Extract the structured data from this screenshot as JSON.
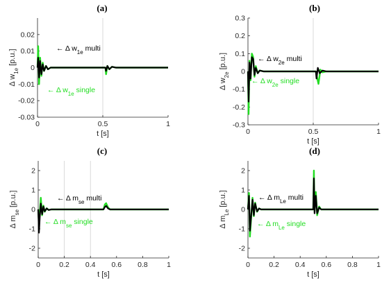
{
  "chart_data": [
    {
      "type": "line",
      "panel_label": "(a)",
      "xlabel": "t [s]",
      "ylabel": "Δ w",
      "ylabel_sub": "1e",
      "ylabel_unit": " [p.u.]",
      "xlim": [
        0,
        1
      ],
      "ylim": [
        -0.03,
        0.03
      ],
      "xticks": [
        0,
        0.5,
        1
      ],
      "yticks": [
        -0.03,
        -0.02,
        -0.01,
        0,
        0.01,
        0.02
      ],
      "xtick_labels": [
        "0",
        "0.5",
        "1"
      ],
      "ytick_labels": [
        "-0.03",
        "-0.02",
        "-0.01",
        "0",
        "0.01",
        "0.02"
      ],
      "grid": [
        0.5
      ],
      "series": [
        {
          "name": "Δ w1e multi",
          "color": "#000000",
          "x": [
            0,
            0.005,
            0.012,
            0.02,
            0.03,
            0.04,
            0.05,
            0.065,
            0.08,
            0.1,
            0.52,
            0.525,
            0.535,
            0.55,
            0.57,
            0.6,
            1
          ],
          "y": [
            0,
            0.006,
            -0.006,
            0.004,
            -0.004,
            0.002,
            -0.002,
            0.001,
            -0.001,
            0,
            0,
            -0.002,
            0.001,
            -0.001,
            0.0005,
            0,
            0
          ]
        },
        {
          "name": "Δ w1e single",
          "color": "#22dd22",
          "x": [
            0,
            0.005,
            0.012,
            0.02,
            0.03,
            0.04,
            0.05,
            0.065,
            0.08,
            0.1,
            0.52,
            0.525,
            0.535,
            0.55,
            0.57,
            0.6,
            1
          ],
          "y": [
            0,
            0.013,
            -0.01,
            0.006,
            -0.005,
            0.003,
            -0.002,
            0.001,
            -0.001,
            0,
            0,
            -0.004,
            0.001,
            -0.001,
            0.0005,
            0,
            0
          ]
        }
      ],
      "annotations": [
        {
          "label": "Δ w",
          "sub": "1e",
          "suffix": " multi",
          "color": "#000000"
        },
        {
          "label": "Δ w",
          "sub": "1e",
          "suffix": " single",
          "color": "#22dd22"
        }
      ]
    },
    {
      "type": "line",
      "panel_label": "(b)",
      "xlabel": "t [s]",
      "ylabel": "Δ w",
      "ylabel_sub": "2e",
      "ylabel_unit": " [p.u.]",
      "xlim": [
        0,
        1
      ],
      "ylim": [
        -0.3,
        0.3
      ],
      "xticks": [
        0,
        0.5,
        1
      ],
      "yticks": [
        -0.3,
        -0.2,
        -0.1,
        0,
        0.1,
        0.2,
        0.3
      ],
      "xtick_labels": [
        "0",
        "0.5",
        "1"
      ],
      "ytick_labels": [
        "-0.3",
        "-0.2",
        "-0.1",
        "0",
        "0.1",
        "0.2",
        "0.3"
      ],
      "grid": [
        0.5
      ],
      "series": [
        {
          "name": "Δ w2e multi",
          "color": "#000000",
          "x": [
            0,
            0.005,
            0.012,
            0.02,
            0.03,
            0.04,
            0.05,
            0.06,
            0.075,
            0.09,
            0.12,
            0.52,
            0.525,
            0.535,
            0.55,
            0.57,
            0.6,
            1
          ],
          "y": [
            0,
            -0.17,
            0.05,
            -0.04,
            0.08,
            0.07,
            -0.02,
            0.02,
            -0.01,
            0.005,
            0,
            0,
            -0.04,
            0.02,
            -0.01,
            0.005,
            0,
            0
          ]
        },
        {
          "name": "Δ w2e single",
          "color": "#22dd22",
          "x": [
            0,
            0.005,
            0.012,
            0.02,
            0.03,
            0.04,
            0.05,
            0.06,
            0.075,
            0.09,
            0.12,
            0.52,
            0.525,
            0.54,
            0.555,
            0.57,
            0.6,
            1
          ],
          "y": [
            0,
            -0.24,
            0.06,
            -0.05,
            0.1,
            0.08,
            -0.03,
            0.03,
            -0.01,
            0.005,
            0,
            0,
            -0.02,
            -0.07,
            0.01,
            -0.005,
            0,
            0
          ]
        }
      ],
      "annotations": [
        {
          "label": "Δ w",
          "sub": "2e",
          "suffix": " multi",
          "color": "#000000"
        },
        {
          "label": "Δ w",
          "sub": "2e",
          "suffix": " single",
          "color": "#22dd22"
        }
      ]
    },
    {
      "type": "line",
      "panel_label": "(c)",
      "xlabel": "t [s]",
      "ylabel": "Δ m",
      "ylabel_sub": "se",
      "ylabel_unit": " [p.u.]",
      "xlim": [
        0,
        1
      ],
      "ylim": [
        -2.5,
        2.5
      ],
      "xticks": [
        0,
        0.2,
        0.4,
        0.6,
        0.8,
        1
      ],
      "yticks": [
        -2,
        -1,
        0,
        1,
        2
      ],
      "xtick_labels": [
        "0",
        "0.2",
        "0.4",
        "0.6",
        "0.8",
        "1"
      ],
      "ytick_labels": [
        "-2",
        "-1",
        "0",
        "1",
        "2"
      ],
      "grid": [
        0.2,
        0.4
      ],
      "series": [
        {
          "name": "Δ mse multi",
          "color": "#000000",
          "x": [
            0,
            0.006,
            0.012,
            0.02,
            0.03,
            0.04,
            0.05,
            0.065,
            0.08,
            0.1,
            0.5,
            0.51,
            0.52,
            0.535,
            0.55,
            1
          ],
          "y": [
            0,
            -1.2,
            -0.4,
            0.3,
            -0.25,
            0.15,
            -0.1,
            0.05,
            -0.03,
            0,
            0,
            0.12,
            0.18,
            0.05,
            0,
            0
          ]
        },
        {
          "name": "Δ mse single",
          "color": "#22dd22",
          "x": [
            0,
            0.006,
            0.012,
            0.02,
            0.03,
            0.04,
            0.05,
            0.065,
            0.08,
            0.1,
            0.5,
            0.51,
            0.52,
            0.535,
            0.55,
            1
          ],
          "y": [
            0,
            -0.8,
            -0.2,
            0.6,
            -0.3,
            0.2,
            -0.12,
            0.06,
            -0.03,
            0,
            0,
            0.25,
            0.32,
            0.1,
            0,
            0
          ]
        }
      ],
      "annotations": [
        {
          "label": "Δ m",
          "sub": "se",
          "suffix": " multi",
          "color": "#000000"
        },
        {
          "label": "Δ m",
          "sub": "se",
          "suffix": " single",
          "color": "#22dd22"
        }
      ]
    },
    {
      "type": "line",
      "panel_label": "(d)",
      "xlabel": "t [s]",
      "ylabel": "Δ m",
      "ylabel_sub": "Le",
      "ylabel_unit": " [p.u.]",
      "xlim": [
        0,
        1
      ],
      "ylim": [
        -2.5,
        2.5
      ],
      "xticks": [
        0,
        0.2,
        0.4,
        0.6,
        0.8,
        1
      ],
      "yticks": [
        -2,
        -1,
        0,
        1,
        2
      ],
      "xtick_labels": [
        "0",
        "0.2",
        "0.4",
        "0.6",
        "0.8",
        "1"
      ],
      "ytick_labels": [
        "-2",
        "-1",
        "0",
        "1",
        "2"
      ],
      "grid": [],
      "series": [
        {
          "name": "Δ mLe multi",
          "color": "#000000",
          "x": [
            0,
            0.008,
            0.015,
            0.025,
            0.035,
            0.045,
            0.055,
            0.07,
            0.085,
            0.1,
            0.5,
            0.505,
            0.51,
            0.52,
            0.53,
            0.545,
            0.56,
            1
          ],
          "y": [
            0,
            0.7,
            -1.1,
            -0.3,
            0.5,
            -0.3,
            0.3,
            -0.1,
            0.05,
            0,
            0,
            1.6,
            -0.2,
            0.7,
            -0.2,
            0.1,
            0,
            0
          ]
        },
        {
          "name": "Δ mLe single",
          "color": "#22dd22",
          "x": [
            0,
            0.008,
            0.015,
            0.025,
            0.035,
            0.045,
            0.055,
            0.07,
            0.085,
            0.1,
            0.5,
            0.505,
            0.51,
            0.52,
            0.53,
            0.545,
            0.56,
            1
          ],
          "y": [
            0,
            0.85,
            -1.4,
            -0.4,
            0.6,
            -0.35,
            0.35,
            -0.12,
            0.05,
            0,
            0,
            2.0,
            -0.1,
            0.9,
            -0.3,
            0.15,
            0,
            0
          ]
        }
      ],
      "annotations": [
        {
          "label": "Δ m",
          "sub": "Le",
          "suffix": " multi",
          "color": "#000000"
        },
        {
          "label": "Δ m",
          "sub": "Le",
          "suffix": " single",
          "color": "#22dd22"
        }
      ]
    }
  ]
}
